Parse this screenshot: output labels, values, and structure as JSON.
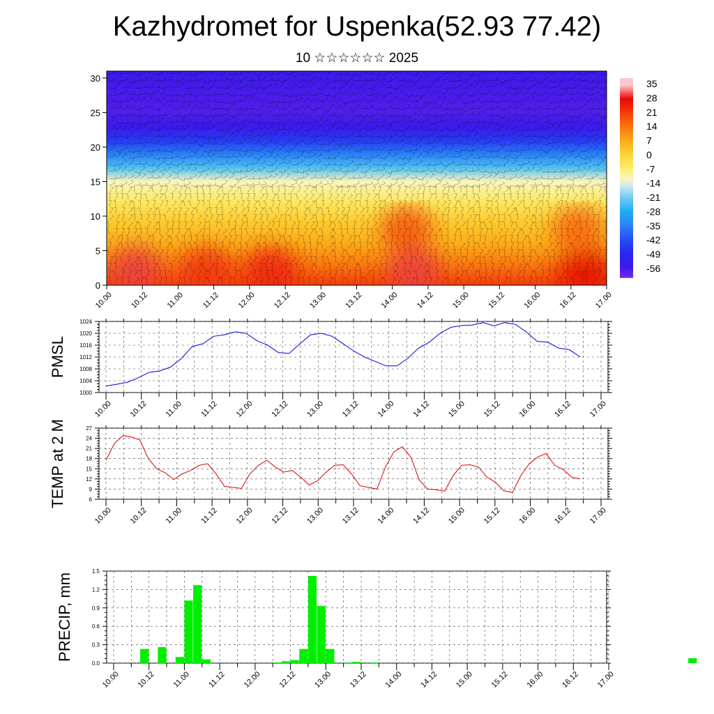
{
  "page": {
    "title": "Kazhydromet for Uspenka(52.93 77.42)",
    "subtitle": "10 ☆☆☆☆☆☆ 2025"
  },
  "colors": {
    "pmsl_line": "#0000dd",
    "temp_line": "#dd0000",
    "precip_bar": "#00ee00"
  },
  "chart_data": [
    {
      "id": "cross_section",
      "type": "heatmap",
      "title": "",
      "xlabel": "",
      "ylabel": "",
      "y_ticks": [
        0,
        5,
        10,
        15,
        20,
        25,
        30
      ],
      "ylim": [
        0,
        31
      ],
      "x_tick_labels": [
        "10.00",
        "10.12",
        "11.00",
        "11.12",
        "12.00",
        "12.12",
        "13.00",
        "13.12",
        "14.00",
        "14.12",
        "15.00",
        "15.12",
        "16.00",
        "16.12",
        "17.00"
      ],
      "colorbar_labels": [
        "35",
        "28",
        "21",
        "14",
        "7",
        "0",
        "-7",
        "-14",
        "-21",
        "-28",
        "-35",
        "-42",
        "-49",
        "-56"
      ],
      "overlay": "wind barbs",
      "bands": [
        {
          "y": 0,
          "value": 21
        },
        {
          "y": 3,
          "value": 14
        },
        {
          "y": 6,
          "value": 7
        },
        {
          "y": 9,
          "value": 2
        },
        {
          "y": 12,
          "value": -5
        },
        {
          "y": 15,
          "value": -12
        },
        {
          "y": 17,
          "value": -24
        },
        {
          "y": 19,
          "value": -36
        },
        {
          "y": 21,
          "value": -46
        },
        {
          "y": 23,
          "value": -56
        },
        {
          "y": 25,
          "value": -58
        },
        {
          "y": 31,
          "value": -56
        }
      ],
      "warm_spots": [
        {
          "x": 0.4,
          "y": 2,
          "value": 30
        },
        {
          "x": 1.4,
          "y": 2,
          "value": 22
        },
        {
          "x": 2.3,
          "y": 2,
          "value": 24
        },
        {
          "x": 4.3,
          "y": 2,
          "value": 30
        },
        {
          "x": 6.7,
          "y": 2,
          "value": 28
        },
        {
          "x": 4.2,
          "y": 8,
          "value": 18
        },
        {
          "x": 6.6,
          "y": 8,
          "value": 16
        }
      ]
    },
    {
      "id": "pmsl",
      "type": "line",
      "ylabel": "PMSL",
      "ylim": [
        1000,
        1024
      ],
      "y_ticks": [
        1000,
        1004,
        1008,
        1012,
        1016,
        1020,
        1024
      ],
      "x_tick_labels": [
        "10.00",
        "10.12",
        "11.00",
        "11.12",
        "12.00",
        "12.12",
        "13.00",
        "13.12",
        "14.00",
        "14.12",
        "15.00",
        "15.12",
        "16.00",
        "16.12",
        "17.00"
      ],
      "series": [
        {
          "values": [
            1002.2,
            1002.8,
            1003.5,
            1005.0,
            1006.8,
            1007.3,
            1008.6,
            1011.5,
            1015.5,
            1016.5,
            1019.0,
            1019.5,
            1020.5,
            1020.0,
            1017.5,
            1016.0,
            1013.5,
            1013.2,
            1016.5,
            1019.5,
            1020.0,
            1019.0,
            1016.5,
            1014.0,
            1012.0,
            1010.5,
            1009.0,
            1009.0,
            1011.5,
            1015.0,
            1017.0,
            1020.0,
            1022.0,
            1022.6,
            1022.8,
            1023.6,
            1022.5,
            1023.6,
            1023.0,
            1020.5,
            1017.3,
            1017.0,
            1015.0,
            1014.5,
            1012.0
          ]
        }
      ]
    },
    {
      "id": "temp",
      "type": "line",
      "ylabel": "TEMP at 2 M",
      "ylim": [
        6,
        27
      ],
      "y_ticks": [
        6,
        9,
        12,
        15,
        18,
        21,
        24,
        27
      ],
      "x_tick_labels": [
        "10.00",
        "10.12",
        "11.00",
        "11.12",
        "12.00",
        "12.12",
        "13.00",
        "13.12",
        "14.00",
        "14.12",
        "15.00",
        "15.12",
        "16.00",
        "16.12",
        "17.00"
      ],
      "series": [
        {
          "values": [
            17.5,
            22.5,
            24.8,
            24.4,
            23.5,
            18.0,
            15.0,
            13.8,
            11.8,
            13.5,
            14.5,
            16.0,
            16.5,
            13.5,
            9.8,
            9.5,
            9.2,
            13.5,
            16.0,
            17.5,
            15.5,
            14.0,
            14.5,
            12.5,
            10.2,
            11.5,
            14.0,
            16.0,
            16.2,
            13.5,
            10.0,
            9.5,
            9.0,
            15.5,
            20.0,
            21.5,
            18.5,
            11.7,
            9.0,
            8.8,
            8.4,
            13.0,
            16.0,
            16.2,
            15.5,
            12.5,
            11.0,
            8.5,
            8.0,
            13.0,
            16.5,
            18.5,
            19.5,
            16.0,
            14.8,
            12.5,
            12.0
          ]
        }
      ]
    },
    {
      "id": "precip",
      "type": "bar",
      "ylabel": "PRECIP, mm",
      "ylim": [
        0,
        1.5
      ],
      "y_ticks": [
        "0.0",
        "0.3",
        "0.6",
        "0.9",
        "1.2",
        "1.5"
      ],
      "x_tick_labels": [
        "10.00",
        "10.12",
        "11.00",
        "11.12",
        "12.00",
        "12.12",
        "13.00",
        "13.12",
        "14.00",
        "14.12",
        "15.00",
        "15.12",
        "16.00",
        "16.12",
        "17.00"
      ],
      "values": [
        0,
        0,
        0,
        0.23,
        0,
        0.26,
        0,
        0.1,
        1.02,
        1.27,
        0.06,
        0,
        0,
        0,
        0,
        0,
        0,
        0,
        0.01,
        0.03,
        0.05,
        0.23,
        1.42,
        0.93,
        0.23,
        0,
        0.01,
        0.02,
        0,
        0.01,
        0,
        0,
        0,
        0,
        0,
        0,
        0,
        0,
        0,
        0,
        0,
        0,
        0,
        0,
        0,
        0,
        0,
        0,
        0,
        0,
        0,
        0,
        0,
        0,
        0,
        0,
        0,
        0,
        0,
        0,
        0,
        0,
        0,
        0,
        0,
        0.08,
        0,
        0
      ]
    }
  ]
}
